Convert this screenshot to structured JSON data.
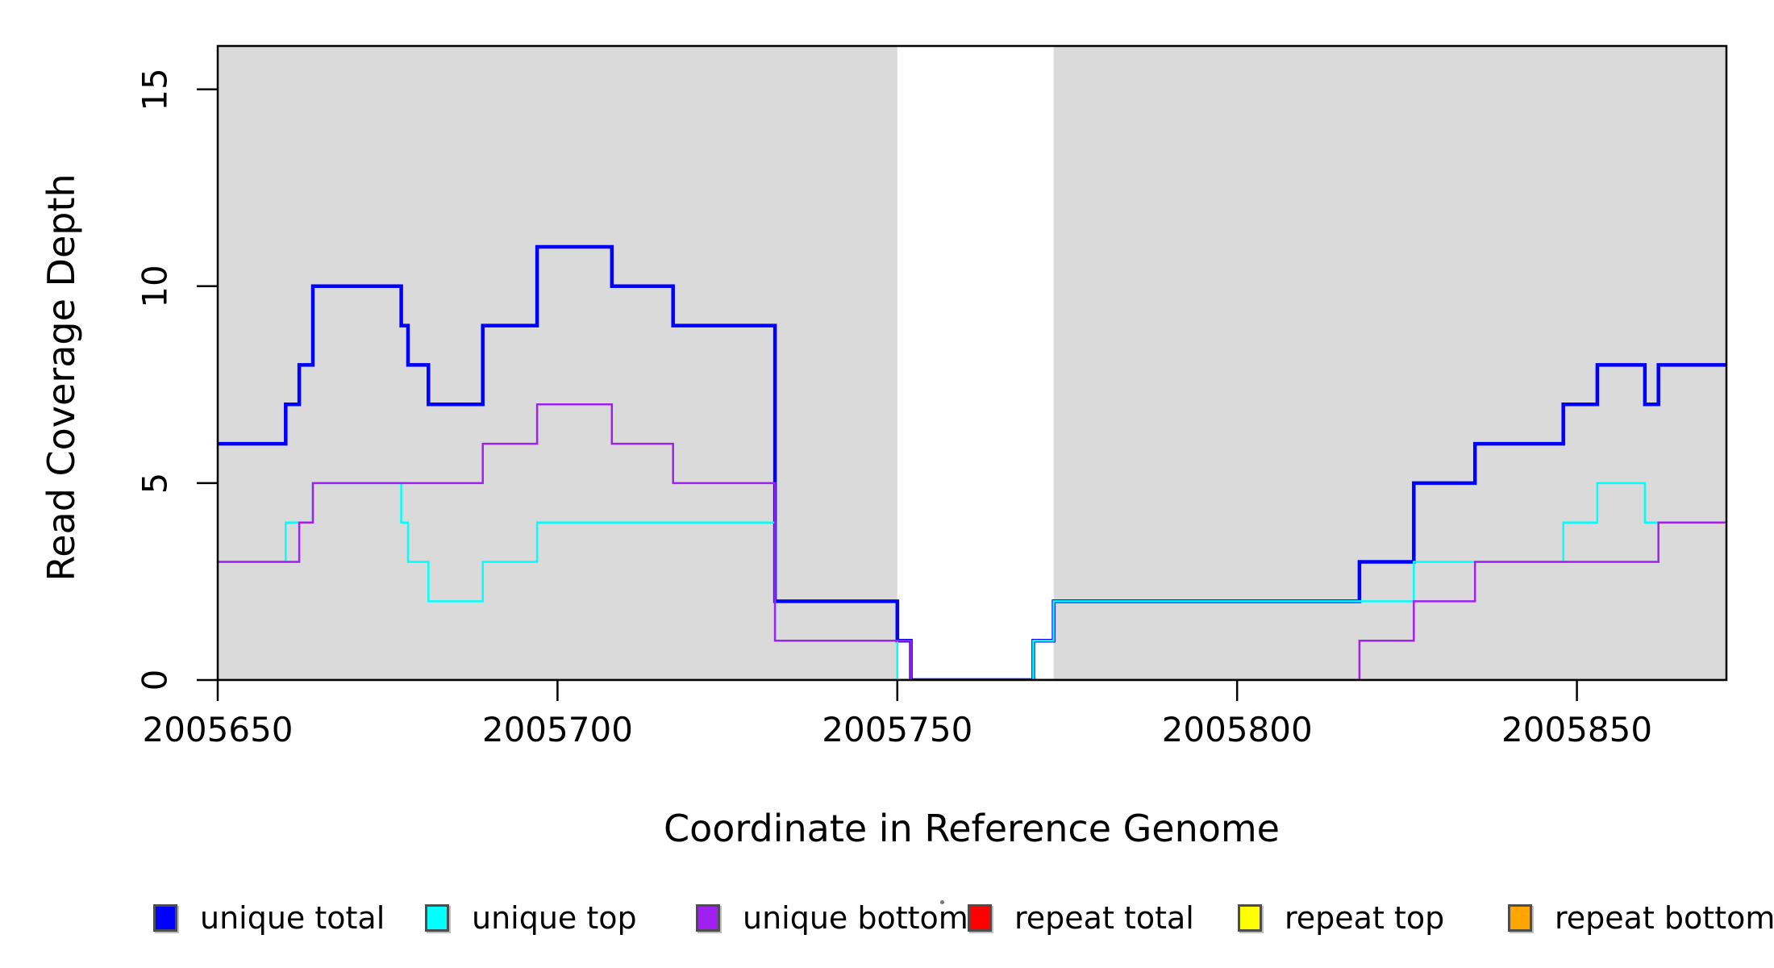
{
  "figure": {
    "xlabel": "Coordinate in Reference Genome",
    "ylabel": "Read Coverage Depth"
  },
  "chart_data": {
    "type": "line",
    "subtype": "step-coverage",
    "title": "",
    "xlabel": "Coordinate in Reference Genome",
    "ylabel": "Read Coverage Depth",
    "xlim": [
      2005650,
      2005872
    ],
    "ylim": [
      0,
      16.1
    ],
    "xticks": [
      2005650,
      2005700,
      2005750,
      2005800,
      2005850
    ],
    "xtick_labels": [
      "2005650",
      "2005700",
      "2005750",
      "2005800",
      "2005850"
    ],
    "yticks": [
      0,
      5,
      10,
      15
    ],
    "ytick_labels": [
      "0",
      "5",
      "10",
      "15"
    ],
    "grid": false,
    "plot_background": "#ffffff",
    "shaded_bands": [
      {
        "from": 2005650,
        "to": 2005750,
        "color": "#dadada"
      },
      {
        "from": 2005773,
        "to": 2005872,
        "color": "#dadada"
      }
    ],
    "series": [
      {
        "name": "repeat total",
        "color": "#ff0000",
        "width": 3,
        "steps": [
          [
            2005650,
            0
          ],
          [
            2005872,
            0
          ]
        ]
      },
      {
        "name": "repeat top",
        "color": "#ffff00",
        "width": 3,
        "steps": [
          [
            2005650,
            0
          ],
          [
            2005872,
            0
          ]
        ]
      },
      {
        "name": "repeat bottom",
        "color": "#ffa500",
        "width": 3.5,
        "steps": [
          [
            2005650,
            0
          ],
          [
            2005872,
            0
          ]
        ]
      },
      {
        "name": "unique total",
        "color": "#0000ff",
        "width": 4.5,
        "steps": [
          [
            2005650,
            6
          ],
          [
            2005660,
            7
          ],
          [
            2005662,
            8
          ],
          [
            2005664,
            10
          ],
          [
            2005677,
            9
          ],
          [
            2005678,
            8
          ],
          [
            2005681,
            7
          ],
          [
            2005689,
            9
          ],
          [
            2005697,
            11
          ],
          [
            2005708,
            10
          ],
          [
            2005717,
            9
          ],
          [
            2005732,
            2
          ],
          [
            2005750,
            1
          ],
          [
            2005752,
            0
          ],
          [
            2005770,
            1
          ],
          [
            2005773,
            2
          ],
          [
            2005818,
            3
          ],
          [
            2005826,
            5
          ],
          [
            2005835,
            6
          ],
          [
            2005848,
            7
          ],
          [
            2005853,
            8
          ],
          [
            2005860,
            7
          ],
          [
            2005862,
            8
          ],
          [
            2005872,
            8
          ]
        ]
      },
      {
        "name": "unique top",
        "color": "#00ffff",
        "width": 2.5,
        "steps": [
          [
            2005650,
            3
          ],
          [
            2005660,
            4
          ],
          [
            2005664,
            5
          ],
          [
            2005677,
            4
          ],
          [
            2005678,
            3
          ],
          [
            2005681,
            2
          ],
          [
            2005689,
            3
          ],
          [
            2005697,
            4
          ],
          [
            2005732,
            1
          ],
          [
            2005750,
            0
          ],
          [
            2005770,
            1
          ],
          [
            2005773,
            2
          ],
          [
            2005826,
            3
          ],
          [
            2005848,
            4
          ],
          [
            2005853,
            5
          ],
          [
            2005860,
            4
          ],
          [
            2005872,
            4
          ]
        ]
      },
      {
        "name": "unique bottom",
        "color": "#a020f0",
        "width": 2.5,
        "steps": [
          [
            2005650,
            3
          ],
          [
            2005662,
            4
          ],
          [
            2005664,
            5
          ],
          [
            2005689,
            6
          ],
          [
            2005697,
            7
          ],
          [
            2005708,
            6
          ],
          [
            2005717,
            5
          ],
          [
            2005732,
            1
          ],
          [
            2005752,
            0
          ],
          [
            2005818,
            1
          ],
          [
            2005826,
            2
          ],
          [
            2005835,
            3
          ],
          [
            2005862,
            4
          ],
          [
            2005872,
            4
          ]
        ]
      }
    ],
    "legend_position": "bottom",
    "legend": [
      {
        "label": "unique total",
        "color": "#0000ff"
      },
      {
        "label": "unique top",
        "color": "#00ffff"
      },
      {
        "label": "unique bottom",
        "color": "#a020f0"
      },
      {
        "label": "repeat total",
        "color": "#ff0000"
      },
      {
        "label": "repeat top",
        "color": "#ffff00"
      },
      {
        "label": "repeat bottom",
        "color": "#ffa500"
      }
    ]
  },
  "layout_hints": {
    "axis_color": "#000000",
    "tick_label_color": "#000000"
  }
}
